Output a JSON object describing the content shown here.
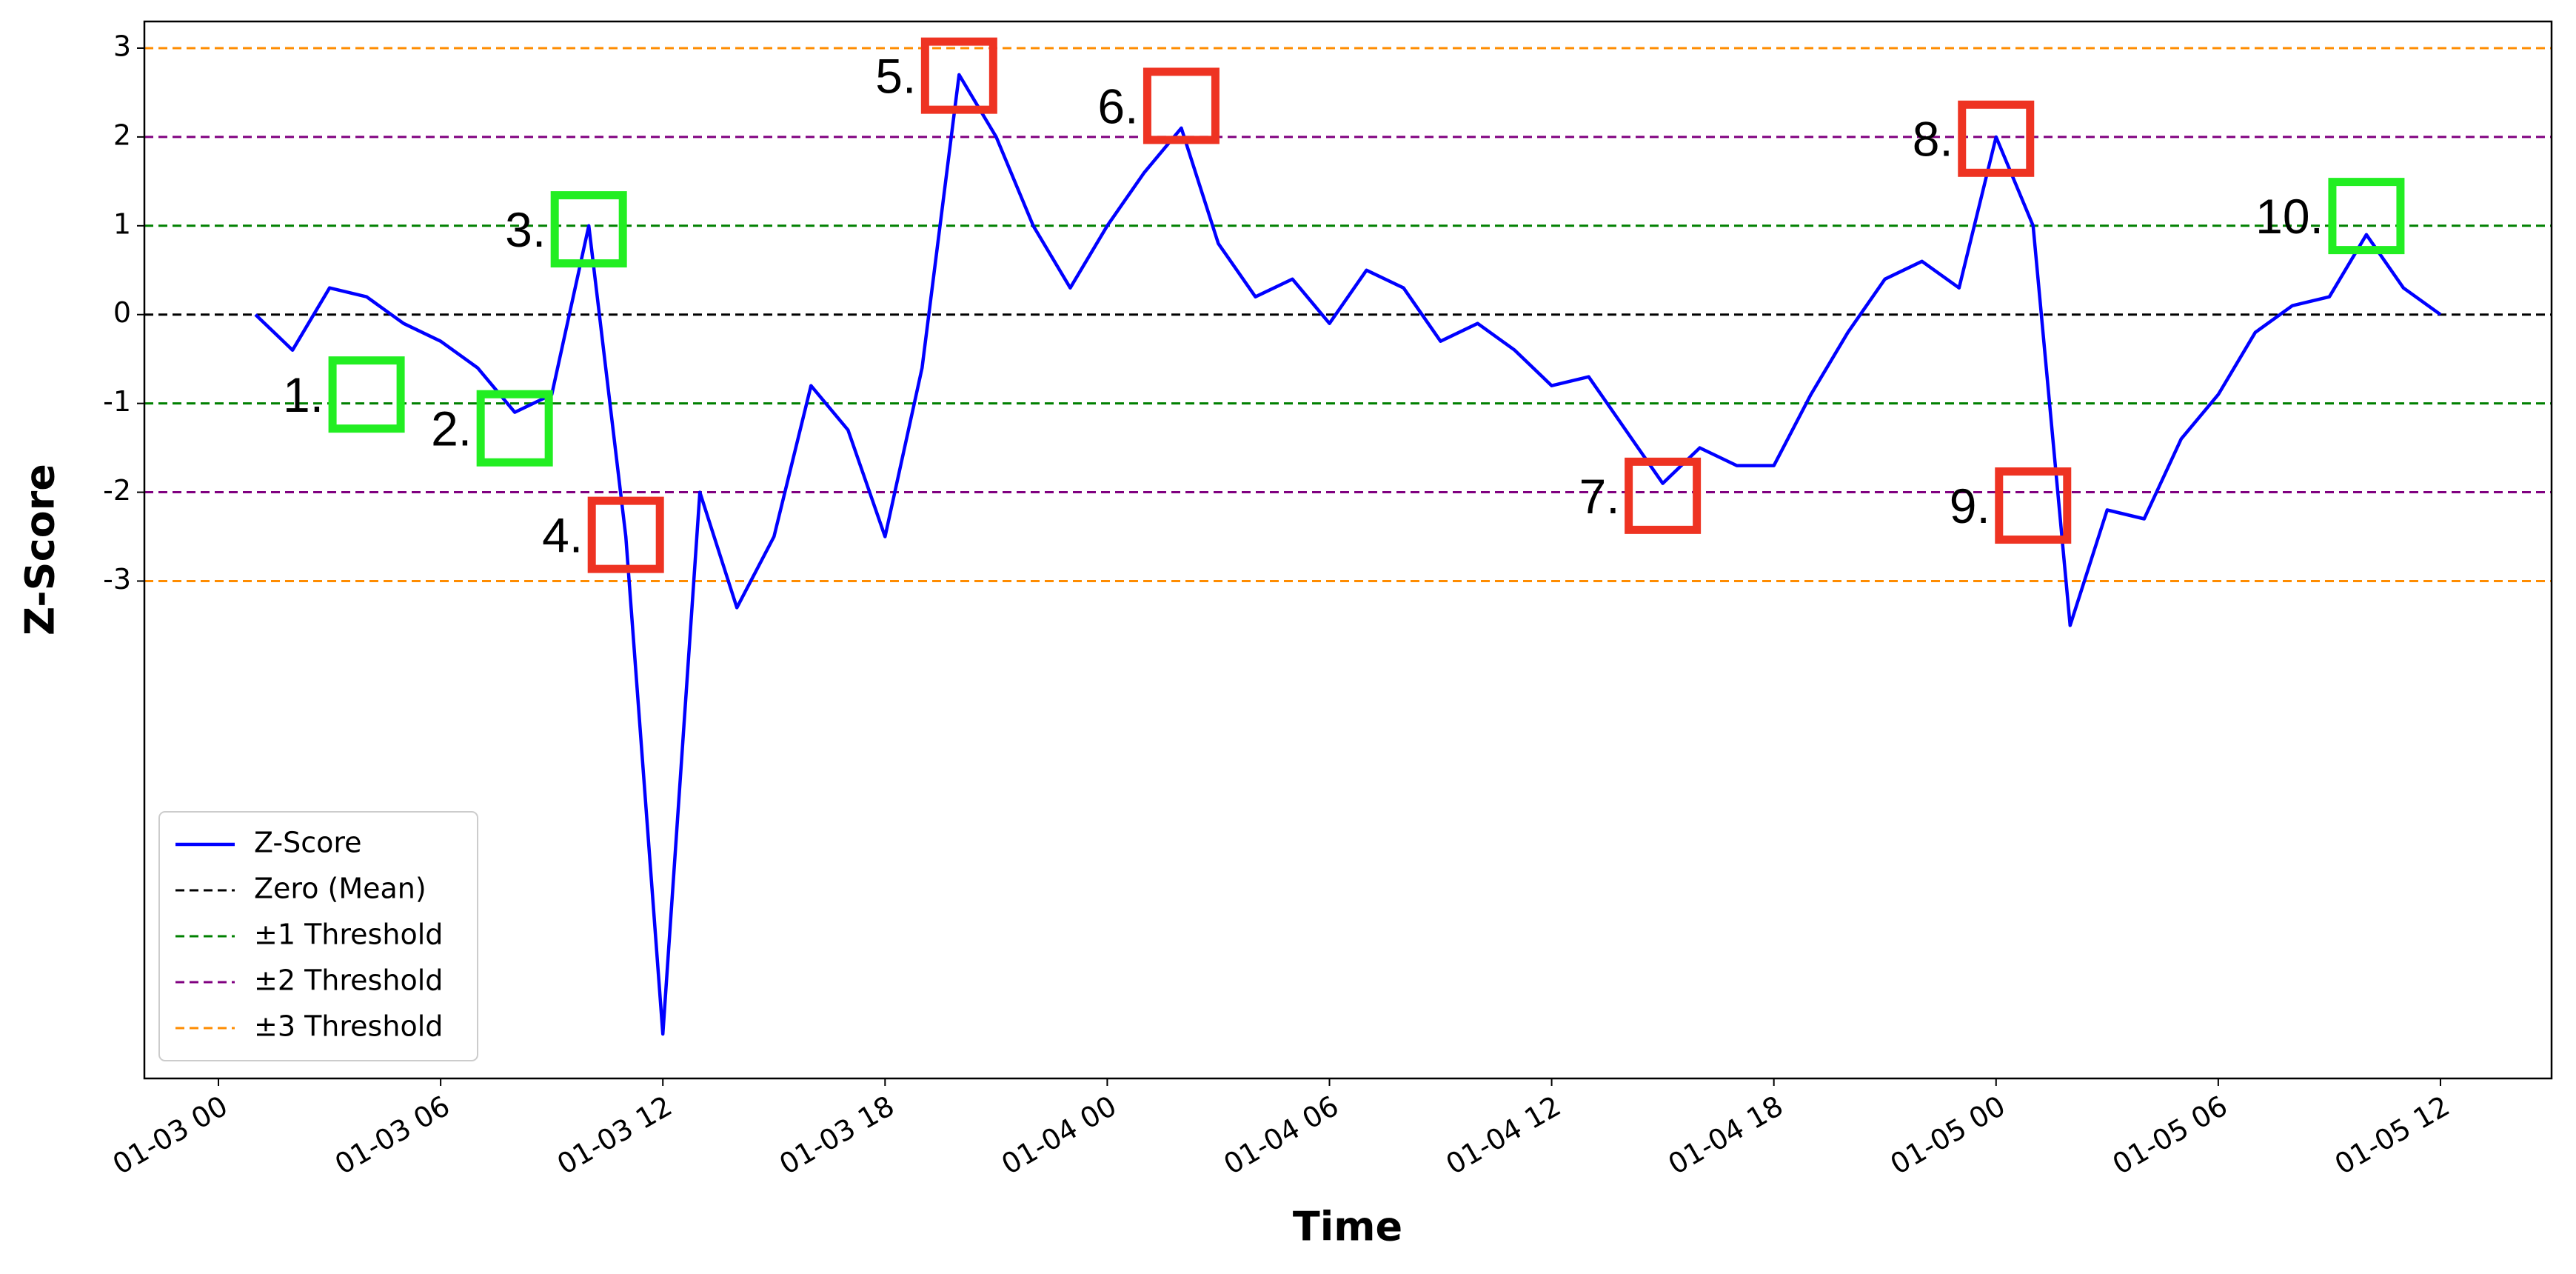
{
  "chart_data": {
    "type": "line",
    "x_label": "Time",
    "y_label": "Z-Score",
    "x": [
      "01-03 01",
      "01-03 02",
      "01-03 03",
      "01-03 04",
      "01-03 05",
      "01-03 06",
      "01-03 07",
      "01-03 08",
      "01-03 09",
      "01-03 10",
      "01-03 11",
      "01-03 12",
      "01-03 13",
      "01-03 14",
      "01-03 15",
      "01-03 16",
      "01-03 17",
      "01-03 18",
      "01-03 19",
      "01-03 20",
      "01-03 21",
      "01-03 22",
      "01-03 23",
      "01-04 00",
      "01-04 01",
      "01-04 02",
      "01-04 03",
      "01-04 04",
      "01-04 05",
      "01-04 06",
      "01-04 07",
      "01-04 08",
      "01-04 09",
      "01-04 10",
      "01-04 11",
      "01-04 12",
      "01-04 13",
      "01-04 14",
      "01-04 15",
      "01-04 16",
      "01-04 17",
      "01-04 18",
      "01-04 19",
      "01-04 20",
      "01-04 21",
      "01-04 22",
      "01-04 23",
      "01-05 00",
      "01-05 01",
      "01-05 02",
      "01-05 03",
      "01-05 04",
      "01-05 05",
      "01-05 06",
      "01-05 07",
      "01-05 08",
      "01-05 09",
      "01-05 10",
      "01-05 11",
      "01-05 12"
    ],
    "series": [
      {
        "name": "Z-Score",
        "color": "#0000ff",
        "values": [
          0.0,
          -0.4,
          0.3,
          0.2,
          -0.1,
          -0.3,
          -0.6,
          -1.1,
          -0.9,
          1.0,
          -2.5,
          -8.1,
          -2.0,
          -3.3,
          -2.5,
          -0.8,
          -1.3,
          -2.5,
          -0.6,
          2.7,
          2.0,
          1.0,
          0.3,
          1.0,
          1.6,
          2.1,
          0.8,
          0.2,
          0.4,
          -0.1,
          0.5,
          0.3,
          -0.3,
          -0.1,
          -0.4,
          -0.8,
          -0.7,
          -1.3,
          -1.9,
          -1.5,
          -1.7,
          -1.7,
          -0.9,
          -0.2,
          0.4,
          0.6,
          0.3,
          2.0,
          1.0,
          -3.5,
          -2.2,
          -2.3,
          -1.4,
          -0.9,
          -0.2,
          0.1,
          0.2,
          0.9,
          0.3,
          0.0
        ]
      }
    ],
    "reference_lines": [
      {
        "name": "Zero (Mean)",
        "color": "#000000",
        "values": [
          0
        ]
      },
      {
        "name": "±1 Threshold",
        "color": "#008000",
        "values": [
          1,
          -1
        ]
      },
      {
        "name": "±2 Threshold",
        "color": "#800080",
        "values": [
          2,
          -2
        ]
      },
      {
        "name": "±3 Threshold",
        "color": "#ff8c00",
        "values": [
          3,
          -3
        ]
      }
    ],
    "annotations": [
      {
        "label": "1.",
        "color": "#22ee22",
        "x": "01-03 04",
        "y": -0.9
      },
      {
        "label": "2.",
        "color": "#22ee22",
        "x": "01-03 08",
        "y": -1.28
      },
      {
        "label": "3.",
        "color": "#22ee22",
        "x": "01-03 10",
        "y": 0.96
      },
      {
        "label": "4.",
        "color": "#ee3322",
        "x": "01-03 11",
        "y": -2.48
      },
      {
        "label": "5.",
        "color": "#ee3322",
        "x": "01-03 20",
        "y": 2.69
      },
      {
        "label": "6.",
        "color": "#ee3322",
        "x": "01-04 02",
        "y": 2.35
      },
      {
        "label": "7.",
        "color": "#ee3322",
        "x": "01-04 15",
        "y": -2.04
      },
      {
        "label": "8.",
        "color": "#ee3322",
        "x": "01-05 00",
        "y": 1.98
      },
      {
        "label": "9.",
        "color": "#ee3322",
        "x": "01-05 01",
        "y": -2.15
      },
      {
        "label": "10.",
        "color": "#22ee22",
        "x": "01-05 10",
        "y": 1.11
      }
    ],
    "xlim": [
      "01-02 22",
      "01-05 15"
    ],
    "xticks": [
      "01-03 00",
      "01-03 06",
      "01-03 12",
      "01-03 18",
      "01-04 00",
      "01-04 06",
      "01-04 12",
      "01-04 18",
      "01-05 00",
      "01-05 06",
      "01-05 12"
    ],
    "ylim": [
      -8.6,
      3.3
    ],
    "yticks": [
      -3,
      -2,
      -1,
      0,
      1,
      2,
      3
    ],
    "legend": "lower left"
  }
}
